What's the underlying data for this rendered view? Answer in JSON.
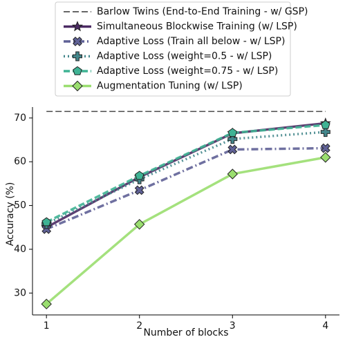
{
  "chart_data": {
    "type": "line",
    "x_label": "Number of blocks",
    "y_label": "Accuracy (%)",
    "x": [
      1,
      2,
      3,
      4
    ],
    "xlim": [
      0.85,
      4.15
    ],
    "xticks": [
      1,
      2,
      3,
      4
    ],
    "ylim": [
      25,
      72.5
    ],
    "yticks": [
      30,
      40,
      50,
      60,
      70
    ],
    "series": [
      {
        "name": "Barlow Twins (End-to-End Training - w/ GSP)",
        "color": "#333333",
        "dash": "dashed",
        "marker": "none",
        "values": [
          71.5,
          71.5,
          71.5,
          71.5
        ]
      },
      {
        "name": "Simultaneous Blockwise Training (w/ LSP)",
        "color": "#4b2a63",
        "dash": "solid",
        "marker": "star",
        "values": [
          45,
          56.5,
          66.5,
          68.8
        ]
      },
      {
        "name": "Adaptive Loss (Train all below - w/ LSP)",
        "color": "#5f6196",
        "dash": "dashdot",
        "marker": "x",
        "values": [
          44.6,
          53.5,
          62.8,
          63.1
        ]
      },
      {
        "name": "Adaptive Loss (weight=0.5 - w/ LSP)",
        "color": "#44878c",
        "dash": "dotted",
        "marker": "plus",
        "values": [
          45.8,
          56,
          65.2,
          66.8
        ]
      },
      {
        "name": "Adaptive Loss (weight=0.75 - w/ LSP)",
        "color": "#3fb394",
        "dash": "dashed",
        "marker": "pentagon",
        "values": [
          46.2,
          56.8,
          66.6,
          68.4
        ]
      },
      {
        "name": "Augmentation Tuning (w/ LSP)",
        "color": "#9ade6f",
        "dash": "solid",
        "marker": "diamond",
        "values": [
          27.5,
          45.7,
          57.2,
          61
        ]
      }
    ]
  }
}
